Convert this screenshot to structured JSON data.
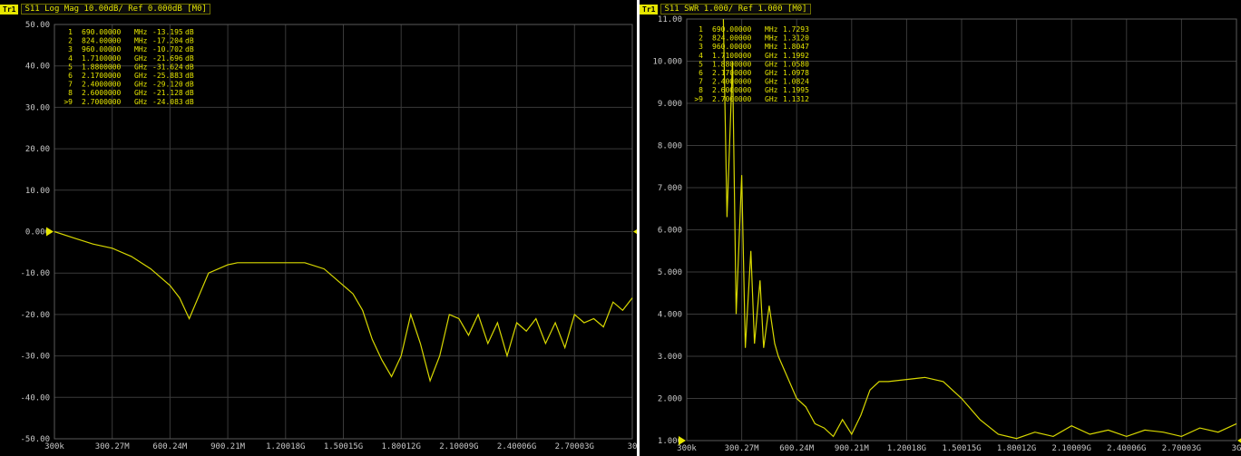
{
  "panels": [
    {
      "header": {
        "trace_badge": "Tr1",
        "title": "S11 Log Mag 10.00dB/ Ref 0.000dB [M0]"
      },
      "chart_data": {
        "type": "line",
        "ylim": [
          -50,
          50
        ],
        "yticks": [
          "50.00",
          "40.00",
          "30.00",
          "20.00",
          "10.00",
          "0.000",
          "-10.00",
          "-20.00",
          "-30.00",
          "-40.00",
          "-50.00"
        ],
        "xticks": [
          "300k",
          "300.27M",
          "600.24M",
          "900.21M",
          "1.20018G",
          "1.50015G",
          "1.80012G",
          "2.10009G",
          "2.40006G",
          "2.70003G",
          "30"
        ],
        "ref_value": 0,
        "markers": [
          {
            "num": "1",
            "freq": "690.00000",
            "unit": "MHz",
            "value": "-13.195",
            "vunit": "dB"
          },
          {
            "num": "2",
            "freq": "824.00000",
            "unit": "MHz",
            "value": "-17.204",
            "vunit": "dB"
          },
          {
            "num": "3",
            "freq": "960.00000",
            "unit": "MHz",
            "value": "-10.702",
            "vunit": "dB"
          },
          {
            "num": "4",
            "freq": "1.7100000",
            "unit": "GHz",
            "value": "-21.696",
            "vunit": "dB"
          },
          {
            "num": "5",
            "freq": "1.8800000",
            "unit": "GHz",
            "value": "-31.624",
            "vunit": "dB"
          },
          {
            "num": "6",
            "freq": "2.1700000",
            "unit": "GHz",
            "value": "-25.883",
            "vunit": "dB"
          },
          {
            "num": "7",
            "freq": "2.4000000",
            "unit": "GHz",
            "value": "-29.120",
            "vunit": "dB"
          },
          {
            "num": "8",
            "freq": "2.6000000",
            "unit": "GHz",
            "value": "-21.128",
            "vunit": "dB"
          },
          {
            "num": ">9",
            "freq": "2.7000000",
            "unit": "GHz",
            "value": "-24.083",
            "vunit": "dB"
          }
        ],
        "series": [
          {
            "x": [
              0,
              0.1,
              0.2,
              0.3,
              0.4,
              0.5,
              0.6,
              0.65,
              0.7,
              0.8,
              0.9,
              0.95,
              1.0,
              1.1,
              1.2,
              1.3,
              1.4,
              1.5,
              1.55,
              1.6,
              1.65,
              1.7,
              1.75,
              1.8,
              1.85,
              1.9,
              1.95,
              2.0,
              2.05,
              2.1,
              2.15,
              2.2,
              2.25,
              2.3,
              2.35,
              2.4,
              2.45,
              2.5,
              2.55,
              2.6,
              2.65,
              2.7,
              2.75,
              2.8,
              2.85,
              2.9,
              2.95,
              3.0
            ],
            "y": [
              0,
              -1.5,
              -3,
              -4,
              -6,
              -9,
              -13,
              -16,
              -21,
              -10,
              -8,
              -7.5,
              -7.5,
              -7.5,
              -7.5,
              -7.5,
              -9,
              -13,
              -15,
              -19,
              -26,
              -31,
              -35,
              -30,
              -20,
              -27,
              -36,
              -30,
              -20,
              -21,
              -25,
              -20,
              -27,
              -22,
              -30,
              -22,
              -24,
              -21,
              -27,
              -22,
              -28,
              -20,
              -22,
              -21,
              -23,
              -17,
              -19,
              -16
            ]
          }
        ]
      }
    },
    {
      "header": {
        "trace_badge": "Tr1",
        "title": "S11 SWR 1.000/ Ref 1.000 [M0]"
      },
      "chart_data": {
        "type": "line",
        "ylim": [
          1,
          11
        ],
        "yticks": [
          "11.00",
          "10.000",
          "9.000",
          "8.000",
          "7.000",
          "6.000",
          "5.000",
          "4.000",
          "3.000",
          "2.000",
          "1.000"
        ],
        "xticks": [
          "300k",
          "300.27M",
          "600.24M",
          "900.21M",
          "1.20018G",
          "1.50015G",
          "1.80012G",
          "2.10009G",
          "2.40006G",
          "2.70003G",
          "3G"
        ],
        "ref_value": 1,
        "markers": [
          {
            "num": "1",
            "freq": "690.00000",
            "unit": "MHz",
            "value": "1.7293",
            "vunit": ""
          },
          {
            "num": "2",
            "freq": "824.00000",
            "unit": "MHz",
            "value": "1.3120",
            "vunit": ""
          },
          {
            "num": "3",
            "freq": "960.00000",
            "unit": "MHz",
            "value": "1.8047",
            "vunit": ""
          },
          {
            "num": "4",
            "freq": "1.7100000",
            "unit": "GHz",
            "value": "1.1992",
            "vunit": ""
          },
          {
            "num": "5",
            "freq": "1.8800000",
            "unit": "GHz",
            "value": "1.0580",
            "vunit": ""
          },
          {
            "num": "6",
            "freq": "2.1700000",
            "unit": "GHz",
            "value": "1.0978",
            "vunit": ""
          },
          {
            "num": "7",
            "freq": "2.4000000",
            "unit": "GHz",
            "value": "1.0824",
            "vunit": ""
          },
          {
            "num": "8",
            "freq": "2.6000000",
            "unit": "GHz",
            "value": "1.1995",
            "vunit": ""
          },
          {
            "num": ">9",
            "freq": "2.7000000",
            "unit": "GHz",
            "value": "1.1312",
            "vunit": ""
          }
        ],
        "series": [
          {
            "x": [
              0.2,
              0.22,
              0.25,
              0.27,
              0.3,
              0.32,
              0.35,
              0.37,
              0.4,
              0.42,
              0.45,
              0.48,
              0.5,
              0.55,
              0.6,
              0.65,
              0.7,
              0.75,
              0.8,
              0.85,
              0.9,
              0.95,
              1.0,
              1.05,
              1.1,
              1.2,
              1.3,
              1.4,
              1.5,
              1.6,
              1.7,
              1.8,
              1.9,
              2.0,
              2.1,
              2.2,
              2.3,
              2.4,
              2.5,
              2.6,
              2.7,
              2.8,
              2.9,
              3.0
            ],
            "y": [
              11,
              6.3,
              10,
              4,
              7.3,
              3.2,
              5.5,
              3.3,
              4.8,
              3.2,
              4.2,
              3.3,
              3.0,
              2.5,
              2.0,
              1.8,
              1.4,
              1.3,
              1.1,
              1.5,
              1.15,
              1.6,
              2.2,
              2.4,
              2.4,
              2.45,
              2.5,
              2.4,
              2.0,
              1.5,
              1.15,
              1.05,
              1.2,
              1.1,
              1.35,
              1.15,
              1.25,
              1.1,
              1.25,
              1.2,
              1.1,
              1.3,
              1.2,
              1.4
            ]
          }
        ]
      }
    }
  ]
}
